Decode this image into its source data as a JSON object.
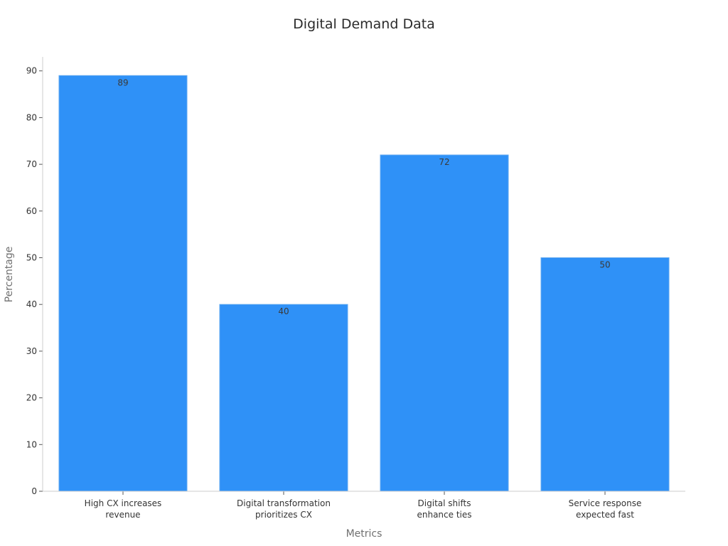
{
  "chart_data": {
    "type": "bar",
    "title": "Digital Demand Data",
    "xlabel": "Metrics",
    "ylabel": "Percentage",
    "categories": [
      [
        "High CX increases",
        "revenue"
      ],
      [
        "Digital transformation",
        "prioritizes CX"
      ],
      [
        "Digital shifts",
        "enhance ties"
      ],
      [
        "Service response",
        "expected fast"
      ]
    ],
    "values": [
      89,
      40,
      72,
      50
    ],
    "ylim": [
      0,
      93
    ],
    "yticks": [
      0,
      10,
      20,
      30,
      40,
      50,
      60,
      70,
      80,
      90
    ],
    "grid": false,
    "legend": "none",
    "colors": {
      "bar": "#2f91f7",
      "bar_edge": "#5fa8f0",
      "axis": "#cccccc",
      "text": "#333333"
    }
  }
}
